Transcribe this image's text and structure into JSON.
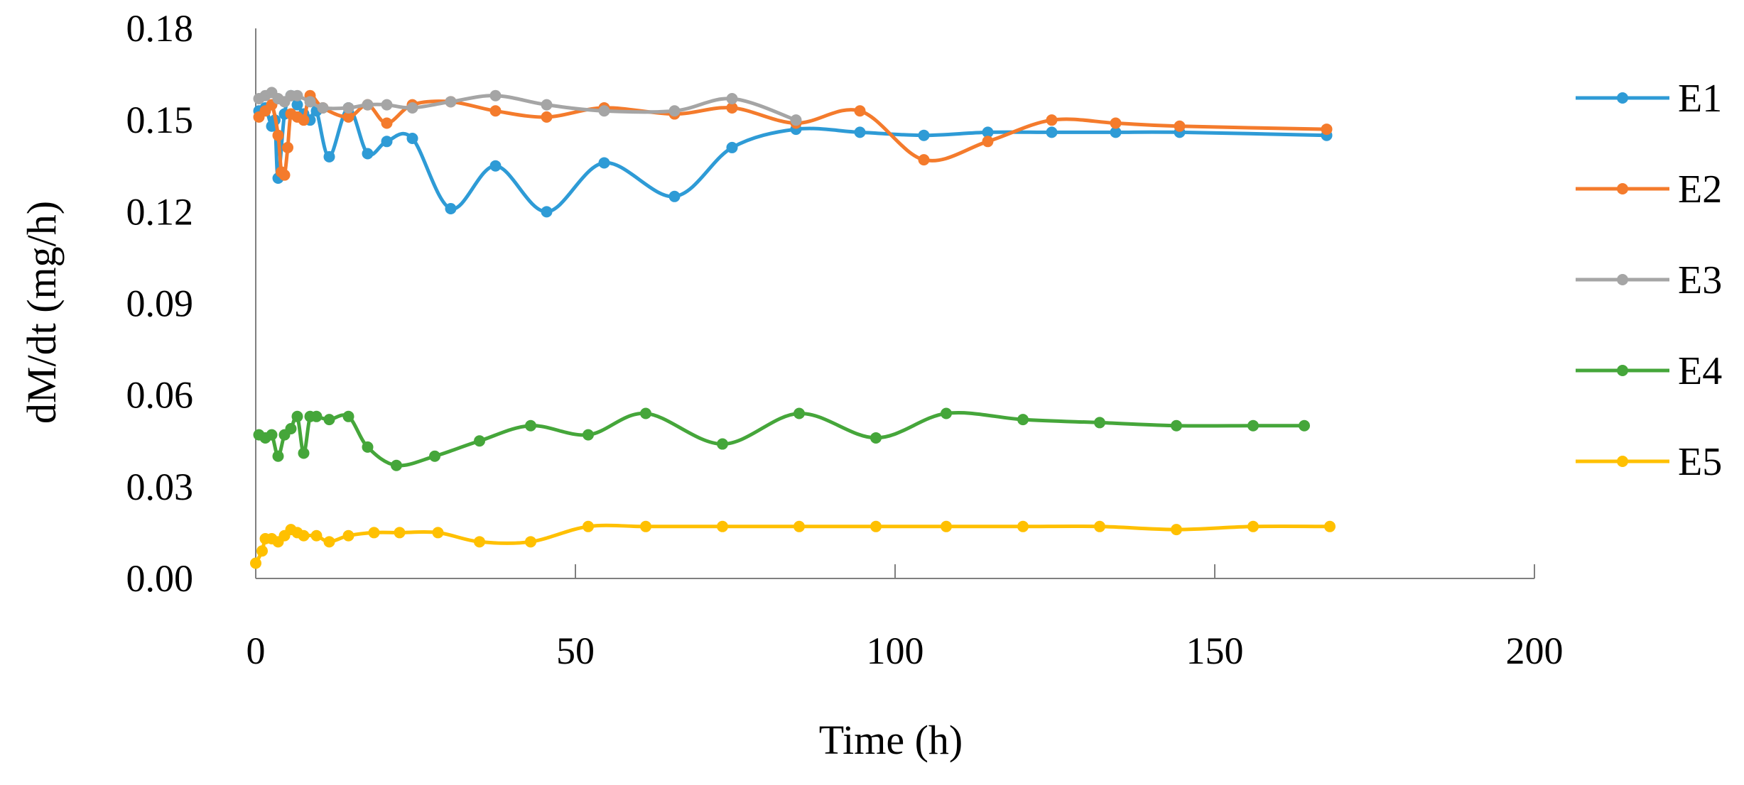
{
  "chart_data": {
    "type": "line",
    "title": "",
    "xlabel": "Time (h)",
    "ylabel": "dM/dt (mg/h)",
    "xlim": [
      0,
      200
    ],
    "ylim": [
      0,
      0.18
    ],
    "x_ticks": [
      0,
      50,
      100,
      150,
      200
    ],
    "x_tick_labels": [
      "0",
      "50",
      "100",
      "150",
      "200"
    ],
    "y_ticks": [
      0,
      0.03,
      0.06,
      0.09,
      0.12,
      0.15,
      0.18
    ],
    "y_tick_labels": [
      "0.00",
      "0.03",
      "0.06",
      "0.09",
      "0.12",
      "0.15",
      "0.18"
    ],
    "grid": false,
    "legend_position": "right",
    "series": [
      {
        "name": "E1",
        "color": "#2E9BD6",
        "points": [
          [
            0.5,
            0.153
          ],
          [
            1.5,
            0.154
          ],
          [
            2.5,
            0.148
          ],
          [
            3,
            0.15
          ],
          [
            3.5,
            0.131
          ],
          [
            4.5,
            0.152
          ],
          [
            5.5,
            0.158
          ],
          [
            6.5,
            0.155
          ],
          [
            7.5,
            0.152
          ],
          [
            8.5,
            0.15
          ],
          [
            9.5,
            0.153
          ],
          [
            11.5,
            0.138
          ],
          [
            14.5,
            0.154
          ],
          [
            17.5,
            0.139
          ],
          [
            20.5,
            0.143
          ],
          [
            24.5,
            0.144
          ],
          [
            30.5,
            0.121
          ],
          [
            37.5,
            0.135
          ],
          [
            45.5,
            0.12
          ],
          [
            54.5,
            0.136
          ],
          [
            65.5,
            0.125
          ],
          [
            74.5,
            0.141
          ],
          [
            84.5,
            0.147
          ],
          [
            94.5,
            0.146
          ],
          [
            104.5,
            0.145
          ],
          [
            114.5,
            0.146
          ],
          [
            124.5,
            0.146
          ],
          [
            134.5,
            0.146
          ],
          [
            144.5,
            0.146
          ],
          [
            167.5,
            0.145
          ]
        ]
      },
      {
        "name": "E2",
        "color": "#F47B2C",
        "points": [
          [
            0.5,
            0.151
          ],
          [
            1.5,
            0.153
          ],
          [
            2.5,
            0.155
          ],
          [
            3.5,
            0.145
          ],
          [
            4,
            0.133
          ],
          [
            4.5,
            0.132
          ],
          [
            5,
            0.141
          ],
          [
            5.5,
            0.152
          ],
          [
            6.5,
            0.151
          ],
          [
            7.5,
            0.15
          ],
          [
            8.5,
            0.158
          ],
          [
            10.5,
            0.154
          ],
          [
            14.5,
            0.151
          ],
          [
            17.5,
            0.155
          ],
          [
            20.5,
            0.149
          ],
          [
            24.5,
            0.155
          ],
          [
            30.5,
            0.156
          ],
          [
            37.5,
            0.153
          ],
          [
            45.5,
            0.151
          ],
          [
            54.5,
            0.154
          ],
          [
            65.5,
            0.152
          ],
          [
            74.5,
            0.154
          ],
          [
            84.5,
            0.149
          ],
          [
            94.5,
            0.153
          ],
          [
            104.5,
            0.137
          ],
          [
            114.5,
            0.143
          ],
          [
            124.5,
            0.15
          ],
          [
            134.5,
            0.149
          ],
          [
            144.5,
            0.148
          ],
          [
            167.5,
            0.147
          ]
        ]
      },
      {
        "name": "E3",
        "color": "#A5A5A5",
        "points": [
          [
            0.5,
            0.157
          ],
          [
            1.5,
            0.158
          ],
          [
            2.5,
            0.159
          ],
          [
            3.5,
            0.157
          ],
          [
            4.5,
            0.156
          ],
          [
            5.5,
            0.158
          ],
          [
            6.5,
            0.158
          ],
          [
            8.5,
            0.156
          ],
          [
            10.5,
            0.154
          ],
          [
            14.5,
            0.154
          ],
          [
            17.5,
            0.155
          ],
          [
            20.5,
            0.155
          ],
          [
            24.5,
            0.154
          ],
          [
            30.5,
            0.156
          ],
          [
            37.5,
            0.158
          ],
          [
            45.5,
            0.155
          ],
          [
            54.5,
            0.153
          ],
          [
            65.5,
            0.153
          ],
          [
            74.5,
            0.157
          ],
          [
            84.5,
            0.15
          ]
        ]
      },
      {
        "name": "E4",
        "color": "#45A63A",
        "points": [
          [
            0.5,
            0.047
          ],
          [
            1.5,
            0.046
          ],
          [
            2.5,
            0.047
          ],
          [
            3.5,
            0.04
          ],
          [
            4.5,
            0.047
          ],
          [
            5.5,
            0.049
          ],
          [
            6.5,
            0.053
          ],
          [
            7.5,
            0.041
          ],
          [
            8.5,
            0.053
          ],
          [
            9.5,
            0.053
          ],
          [
            11.5,
            0.052
          ],
          [
            14.5,
            0.053
          ],
          [
            17.5,
            0.043
          ],
          [
            22,
            0.037
          ],
          [
            28,
            0.04
          ],
          [
            35,
            0.045
          ],
          [
            43,
            0.05
          ],
          [
            52,
            0.047
          ],
          [
            61,
            0.054
          ],
          [
            73,
            0.044
          ],
          [
            85,
            0.054
          ],
          [
            97,
            0.046
          ],
          [
            108,
            0.054
          ],
          [
            120,
            0.052
          ],
          [
            132,
            0.051
          ],
          [
            144,
            0.05
          ],
          [
            156,
            0.05
          ],
          [
            164,
            0.05
          ]
        ]
      },
      {
        "name": "E5",
        "color": "#FFC000",
        "points": [
          [
            0,
            0.005
          ],
          [
            1,
            0.009
          ],
          [
            1.5,
            0.013
          ],
          [
            2.5,
            0.013
          ],
          [
            3.5,
            0.012
          ],
          [
            4.5,
            0.014
          ],
          [
            5.5,
            0.016
          ],
          [
            6.5,
            0.015
          ],
          [
            7.5,
            0.014
          ],
          [
            9.5,
            0.014
          ],
          [
            11.5,
            0.012
          ],
          [
            14.5,
            0.014
          ],
          [
            18.5,
            0.015
          ],
          [
            22.5,
            0.015
          ],
          [
            28.5,
            0.015
          ],
          [
            35,
            0.012
          ],
          [
            43,
            0.012
          ],
          [
            52,
            0.017
          ],
          [
            61,
            0.017
          ],
          [
            73,
            0.017
          ],
          [
            85,
            0.017
          ],
          [
            97,
            0.017
          ],
          [
            108,
            0.017
          ],
          [
            120,
            0.017
          ],
          [
            132,
            0.017
          ],
          [
            144,
            0.016
          ],
          [
            156,
            0.017
          ],
          [
            168,
            0.017
          ]
        ]
      }
    ]
  }
}
